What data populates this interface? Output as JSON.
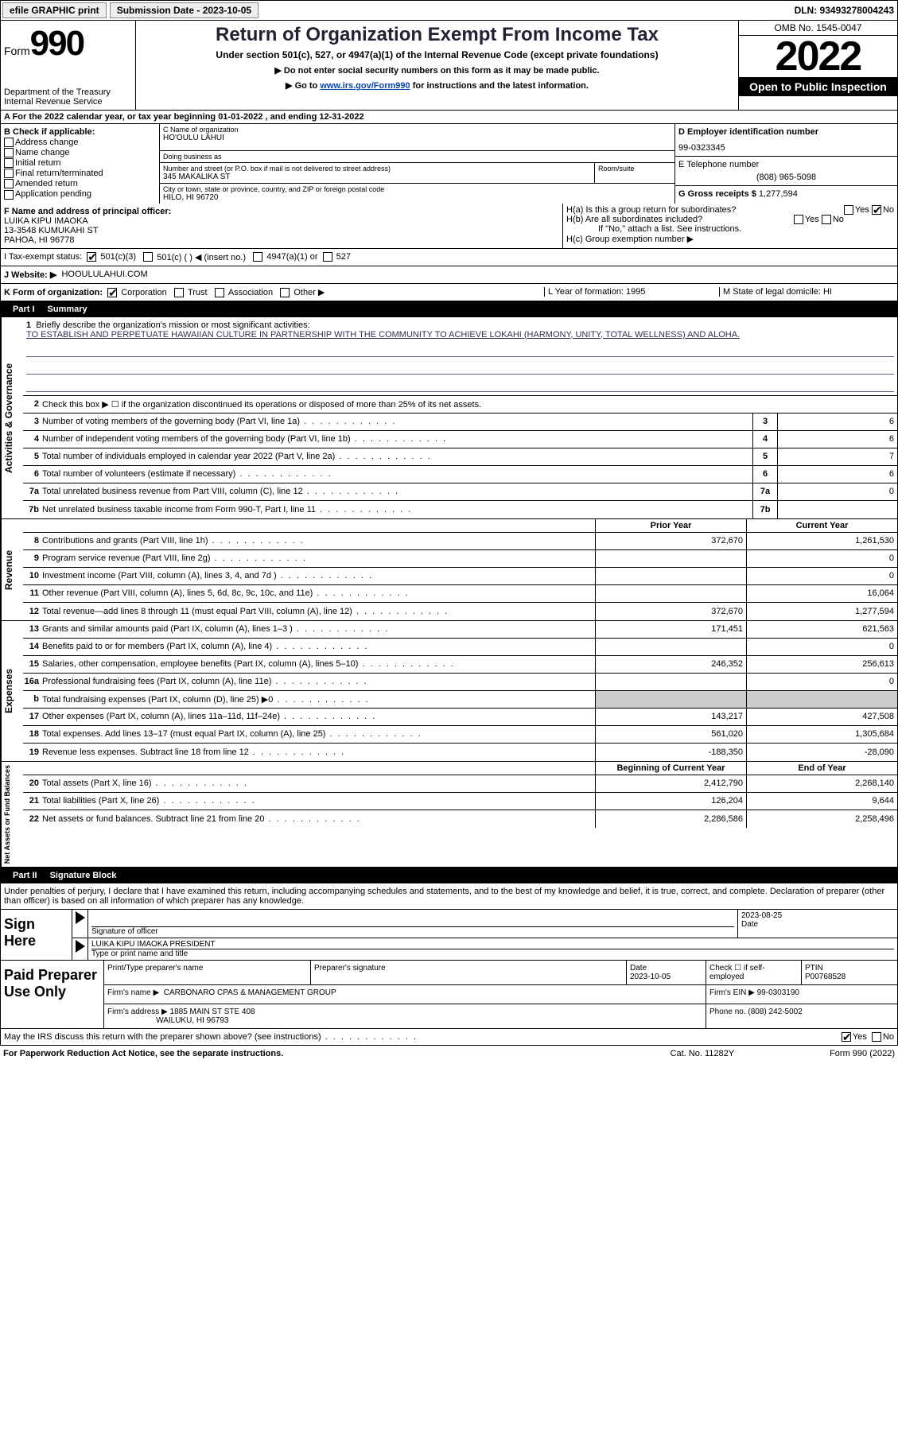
{
  "topbar": {
    "btn1": "efile GRAPHIC print",
    "submission": "Submission Date - 2023-10-05",
    "dln": "DLN: 93493278004243"
  },
  "header": {
    "form_prefix": "Form",
    "form_num": "990",
    "dept": "Department of the Treasury Internal Revenue Service",
    "title": "Return of Organization Exempt From Income Tax",
    "sub1": "Under section 501(c), 527, or 4947(a)(1) of the Internal Revenue Code (except private foundations)",
    "sub2": "▶ Do not enter social security numbers on this form as it may be made public.",
    "sub3_pre": "▶ Go to ",
    "sub3_link": "www.irs.gov/Form990",
    "sub3_post": " for instructions and the latest information.",
    "omb": "OMB No. 1545-0047",
    "year": "2022",
    "open": "Open to Public Inspection"
  },
  "rowA": "A For the 2022 calendar year, or tax year beginning 01-01-2022    , and ending 12-31-2022",
  "B": {
    "label": "B Check if applicable:",
    "opts": [
      "Address change",
      "Name change",
      "Initial return",
      "Final return/terminated",
      "Amended return",
      "Application pending"
    ]
  },
  "C": {
    "name_lbl": "C Name of organization",
    "name": "HO'OULU LAHUI",
    "dba_lbl": "Doing business as",
    "dba": "",
    "street_lbl": "Number and street (or P.O. box if mail is not delivered to street address)",
    "street": "345 MAKALIKA ST",
    "room_lbl": "Room/suite",
    "city_lbl": "City or town, state or province, country, and ZIP or foreign postal code",
    "city": "HILO, HI  96720"
  },
  "D": {
    "ein_lbl": "D Employer identification number",
    "ein": "99-0323345",
    "phone_lbl": "E Telephone number",
    "phone": "(808) 965-5098",
    "gross_lbl": "G Gross receipts $",
    "gross": "1,277,594"
  },
  "F": {
    "lbl": "F Name and address of principal officer:",
    "name": "LUIKA KIPU IMAOKA",
    "addr1": "13-3548 KUMUKAHI ST",
    "addr2": "PAHOA, HI  96778"
  },
  "H": {
    "a": "H(a)  Is this a group return for subordinates?",
    "b": "H(b)  Are all subordinates included?",
    "b2": "If \"No,\" attach a list. See instructions.",
    "c": "H(c)  Group exemption number ▶"
  },
  "I": "I    Tax-exempt status:",
  "I_opts": [
    "501(c)(3)",
    "501(c) (  ) ◀ (insert no.)",
    "4947(a)(1) or",
    "527"
  ],
  "J": "J    Website: ▶",
  "J_val": "HOOULULAHUI.COM",
  "K": {
    "lbl": "K Form of organization:",
    "opts": [
      "Corporation",
      "Trust",
      "Association",
      "Other ▶"
    ],
    "L": "L Year of formation: 1995",
    "M": "M State of legal domicile: HI"
  },
  "part1": {
    "num": "Part I",
    "title": "Summary"
  },
  "summary": {
    "q1": "Briefly describe the organization's mission or most significant activities:",
    "mission": "TO ESTABLISH AND PERPETUATE HAWAIIAN CULTURE IN PARTNERSHIP WITH THE COMMUNITY TO ACHIEVE LOKAHI (HARMONY, UNITY, TOTAL WELLNESS) AND ALOHA.",
    "q2": "Check this box ▶ ☐ if the organization discontinued its operations or disposed of more than 25% of its net assets.",
    "rows_ag": [
      {
        "n": "3",
        "t": "Number of voting members of the governing body (Part VI, line 1a)",
        "v": "6"
      },
      {
        "n": "4",
        "t": "Number of independent voting members of the governing body (Part VI, line 1b)",
        "v": "6"
      },
      {
        "n": "5",
        "t": "Total number of individuals employed in calendar year 2022 (Part V, line 2a)",
        "v": "7"
      },
      {
        "n": "6",
        "t": "Total number of volunteers (estimate if necessary)",
        "v": "6"
      },
      {
        "n": "7a",
        "t": "Total unrelated business revenue from Part VIII, column (C), line 12",
        "v": "0"
      },
      {
        "n": "7b",
        "t": "Net unrelated business taxable income from Form 990-T, Part I, line 11",
        "v": ""
      }
    ],
    "col_prior": "Prior Year",
    "col_curr": "Current Year",
    "rows_rev": [
      {
        "n": "8",
        "t": "Contributions and grants (Part VIII, line 1h)",
        "p": "372,670",
        "c": "1,261,530"
      },
      {
        "n": "9",
        "t": "Program service revenue (Part VIII, line 2g)",
        "p": "",
        "c": "0"
      },
      {
        "n": "10",
        "t": "Investment income (Part VIII, column (A), lines 3, 4, and 7d )",
        "p": "",
        "c": "0"
      },
      {
        "n": "11",
        "t": "Other revenue (Part VIII, column (A), lines 5, 6d, 8c, 9c, 10c, and 11e)",
        "p": "",
        "c": "16,064"
      },
      {
        "n": "12",
        "t": "Total revenue—add lines 8 through 11 (must equal Part VIII, column (A), line 12)",
        "p": "372,670",
        "c": "1,277,594"
      }
    ],
    "rows_exp": [
      {
        "n": "13",
        "t": "Grants and similar amounts paid (Part IX, column (A), lines 1–3 )",
        "p": "171,451",
        "c": "621,563"
      },
      {
        "n": "14",
        "t": "Benefits paid to or for members (Part IX, column (A), line 4)",
        "p": "",
        "c": "0"
      },
      {
        "n": "15",
        "t": "Salaries, other compensation, employee benefits (Part IX, column (A), lines 5–10)",
        "p": "246,352",
        "c": "256,613"
      },
      {
        "n": "16a",
        "t": "Professional fundraising fees (Part IX, column (A), line 11e)",
        "p": "",
        "c": "0"
      },
      {
        "n": "b",
        "t": "Total fundraising expenses (Part IX, column (D), line 25) ▶0",
        "p": "shade",
        "c": "shade"
      },
      {
        "n": "17",
        "t": "Other expenses (Part IX, column (A), lines 11a–11d, 11f–24e)",
        "p": "143,217",
        "c": "427,508"
      },
      {
        "n": "18",
        "t": "Total expenses. Add lines 13–17 (must equal Part IX, column (A), line 25)",
        "p": "561,020",
        "c": "1,305,684"
      },
      {
        "n": "19",
        "t": "Revenue less expenses. Subtract line 18 from line 12",
        "p": "-188,350",
        "c": "-28,090"
      }
    ],
    "col_beg": "Beginning of Current Year",
    "col_end": "End of Year",
    "rows_net": [
      {
        "n": "20",
        "t": "Total assets (Part X, line 16)",
        "p": "2,412,790",
        "c": "2,268,140"
      },
      {
        "n": "21",
        "t": "Total liabilities (Part X, line 26)",
        "p": "126,204",
        "c": "9,644"
      },
      {
        "n": "22",
        "t": "Net assets or fund balances. Subtract line 21 from line 20",
        "p": "2,286,586",
        "c": "2,258,496"
      }
    ],
    "vlabels": [
      "Activities & Governance",
      "Revenue",
      "Expenses",
      "Net Assets or Fund Balances"
    ]
  },
  "part2": {
    "num": "Part II",
    "title": "Signature Block"
  },
  "sig": {
    "text": "Under penalties of perjury, I declare that I have examined this return, including accompanying schedules and statements, and to the best of my knowledge and belief, it is true, correct, and complete. Declaration of preparer (other than officer) is based on all information of which preparer has any knowledge.",
    "here": "Sign Here",
    "sig_lbl": "Signature of officer",
    "date_lbl": "Date",
    "date": "2023-08-25",
    "name": "LUIKA KIPU IMAOKA  PRESIDENT",
    "name_lbl": "Type or print name and title"
  },
  "paid": {
    "lbl": "Paid Preparer Use Only",
    "prep_lbl": "Print/Type preparer's name",
    "sig_lbl": "Preparer's signature",
    "date_lbl": "Date",
    "date": "2023-10-05",
    "check_lbl": "Check ☐ if self-employed",
    "ptin_lbl": "PTIN",
    "ptin": "P00768528",
    "firm_name_lbl": "Firm's name    ▶",
    "firm_name": "CARBONARO CPAS & MANAGEMENT GROUP",
    "firm_ein_lbl": "Firm's EIN ▶",
    "firm_ein": "99-0303190",
    "firm_addr_lbl": "Firm's address ▶",
    "firm_addr": "1885 MAIN ST STE 408",
    "firm_addr2": "WAILUKU, HI  96793",
    "firm_phone_lbl": "Phone no.",
    "firm_phone": "(808) 242-5002"
  },
  "discuss": "May the IRS discuss this return with the preparer shown above? (see instructions)",
  "footer": {
    "l": "For Paperwork Reduction Act Notice, see the separate instructions.",
    "m": "Cat. No. 11282Y",
    "r": "Form 990 (2022)"
  }
}
